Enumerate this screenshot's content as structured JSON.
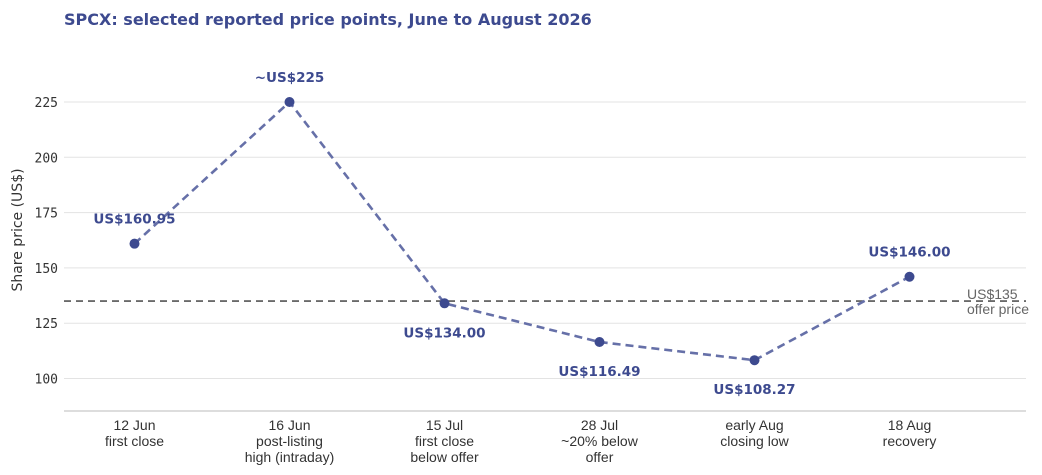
{
  "chart_data": {
    "type": "line",
    "title": "SPCX: selected reported price points, June to August 2026",
    "ylabel": "Share price (US$)",
    "xlabel": "",
    "ylim": [
      85,
      240
    ],
    "yticks": [
      100,
      125,
      150,
      175,
      200,
      225
    ],
    "grid": "horizontal",
    "categories": [
      [
        "12 Jun",
        "first close"
      ],
      [
        "16 Jun",
        "post-listing",
        "high (intraday)"
      ],
      [
        "15 Jul",
        "first close",
        "below offer"
      ],
      [
        "28 Jul",
        "~20% below",
        "offer"
      ],
      [
        "early Aug",
        "closing low"
      ],
      [
        "18 Aug",
        "recovery"
      ]
    ],
    "series": [
      {
        "values": [
          160.95,
          225,
          134.0,
          116.49,
          108.27,
          146.0
        ],
        "data_labels": [
          "US$160.95",
          "~US$225",
          "US$134.00",
          "US$116.49",
          "US$108.27",
          "US$146.00"
        ],
        "label_side": [
          "above",
          "above",
          "below",
          "below",
          "below",
          "above"
        ],
        "color": "#3d4a8f",
        "line_color": "#6670a8",
        "line_style": "dashed"
      }
    ],
    "reference_line": {
      "value": 135,
      "label": [
        "US$135",
        "offer price"
      ],
      "color": "#555555",
      "label_color": "#666666",
      "line_style": "dashed"
    }
  }
}
